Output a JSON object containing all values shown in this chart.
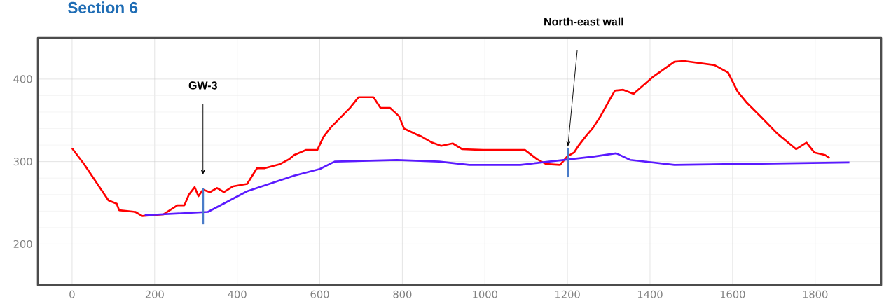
{
  "chart_data": {
    "type": "line",
    "title": "Section 6",
    "xlim": [
      -83,
      1960
    ],
    "ylim": [
      150,
      450
    ],
    "xticks": [
      0,
      200,
      400,
      600,
      800,
      1000,
      1200,
      1400,
      1600,
      1800
    ],
    "yticks": [
      200,
      300,
      400
    ],
    "grid": true,
    "legend": false,
    "marker": "none",
    "line_style": "solid",
    "annotations": [
      "GW-3",
      "North-east wall"
    ],
    "series": [
      {
        "color": "#ff0000",
        "x": [
          0,
          29,
          88,
          108,
          114,
          153,
          170,
          221,
          255,
          272,
          283,
          297,
          306,
          317,
          334,
          351,
          368,
          390,
          424,
          448,
          467,
          504,
          526,
          538,
          566,
          594,
          609,
          626,
          673,
          694,
          730,
          747,
          770,
          792,
          804,
          838,
          844,
          872,
          894,
          922,
          945,
          996,
          1097,
          1126,
          1148,
          1182,
          1199,
          1216,
          1228,
          1245,
          1262,
          1279,
          1301,
          1315,
          1335,
          1360,
          1408,
          1459,
          1482,
          1556,
          1589,
          1612,
          1635,
          1669,
          1708,
          1754,
          1779,
          1798,
          1824,
          1835
        ],
        "values": [
          316,
          297,
          253,
          249,
          241,
          239,
          234,
          236,
          247,
          247,
          260,
          269,
          258,
          266,
          263,
          268,
          263,
          270,
          273,
          292,
          292,
          297,
          303,
          308,
          314,
          314,
          330,
          341,
          365,
          378,
          378,
          365,
          365,
          355,
          340,
          332,
          331,
          323,
          319,
          322,
          315,
          314,
          314,
          303,
          297,
          296,
          306,
          311,
          320,
          331,
          341,
          354,
          374,
          386,
          387,
          382,
          403,
          421,
          422,
          417,
          408,
          385,
          371,
          354,
          334,
          315,
          323,
          311,
          308,
          304
        ]
      },
      {
        "color": "#5a1aff",
        "x": [
          176,
          329,
          424,
          538,
          600,
          636,
          787,
          889,
          962,
          1086,
          1262,
          1318,
          1352,
          1459,
          1883
        ],
        "values": [
          235,
          239,
          264,
          283,
          291,
          300,
          302,
          300,
          296,
          296,
          306,
          310,
          302,
          296,
          299
        ]
      },
      {
        "color": "#4a7cc9",
        "x": [
          317,
          317
        ],
        "values": [
          224,
          268
        ]
      },
      {
        "color": "#4a7cc9",
        "x": [
          1201,
          1201
        ],
        "values": [
          281,
          316
        ]
      }
    ]
  }
}
